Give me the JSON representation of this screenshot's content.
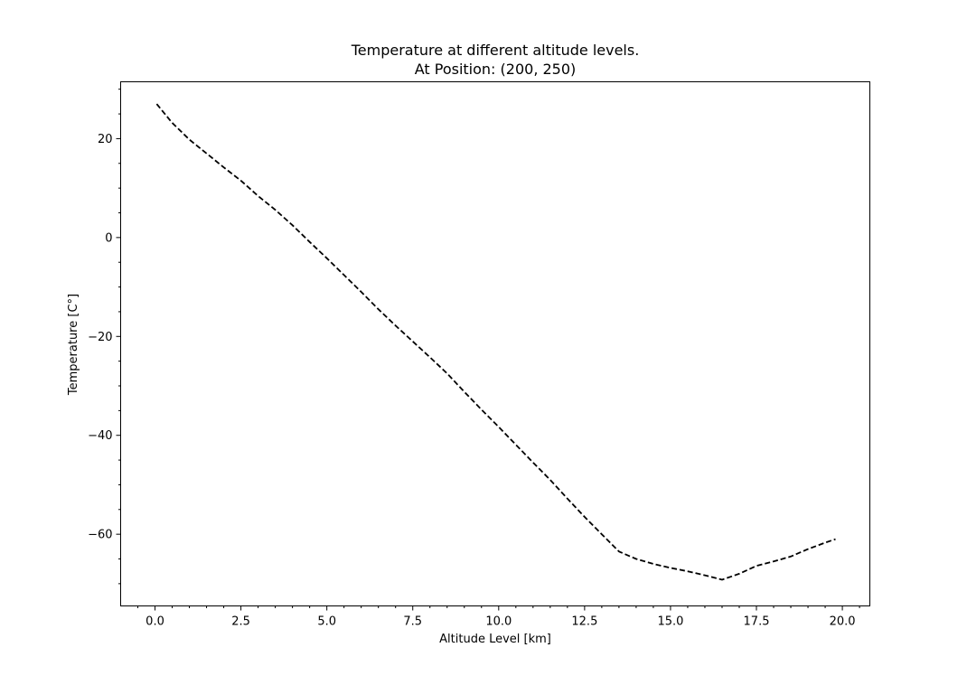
{
  "chart_data": {
    "type": "line",
    "title": "Temperature at different altitude levels.",
    "subtitle": "At Position: (200, 250)",
    "xlabel": "Altitude Level [km]",
    "ylabel": "Temperature [C°]",
    "xlim": [
      -1.0,
      20.8
    ],
    "ylim": [
      -74.5,
      31.5
    ],
    "grid": false,
    "legend": "none",
    "line_style": "dashed",
    "line_color": "#000000",
    "x_ticks": [
      0.0,
      2.5,
      5.0,
      7.5,
      10.0,
      12.5,
      15.0,
      17.5,
      20.0
    ],
    "x_tick_labels": [
      "0.0",
      "2.5",
      "5.0",
      "7.5",
      "10.0",
      "12.5",
      "15.0",
      "17.5",
      "20.0"
    ],
    "y_ticks": [
      20,
      0,
      -20,
      -40,
      -60
    ],
    "y_tick_labels": [
      "20",
      "0",
      "−20",
      "−40",
      "−60"
    ],
    "series": [
      {
        "x": [
          0.05,
          0.5,
          1.0,
          1.5,
          2.0,
          2.5,
          3.0,
          3.5,
          4.0,
          4.5,
          5.0,
          5.5,
          6.0,
          6.5,
          7.0,
          7.5,
          8.0,
          8.5,
          9.0,
          9.5,
          10.0,
          10.5,
          11.0,
          11.5,
          12.0,
          12.5,
          13.0,
          13.5,
          14.0,
          14.5,
          15.0,
          15.5,
          16.0,
          16.5,
          17.0,
          17.5,
          18.0,
          18.5,
          19.0,
          19.5,
          19.8
        ],
        "y": [
          27.0,
          23.2,
          19.8,
          17.0,
          14.2,
          11.5,
          8.4,
          5.6,
          2.5,
          -0.9,
          -4.2,
          -7.6,
          -11.0,
          -14.5,
          -17.8,
          -21.0,
          -24.2,
          -27.5,
          -31.2,
          -34.8,
          -38.3,
          -41.9,
          -45.5,
          -49.0,
          -52.8,
          -56.5,
          -60.0,
          -63.5,
          -65.0,
          -66.0,
          -66.8,
          -67.5,
          -68.3,
          -69.2,
          -68.0,
          -66.4,
          -65.5,
          -64.5,
          -63.0,
          -61.7,
          -61.0
        ]
      }
    ]
  }
}
